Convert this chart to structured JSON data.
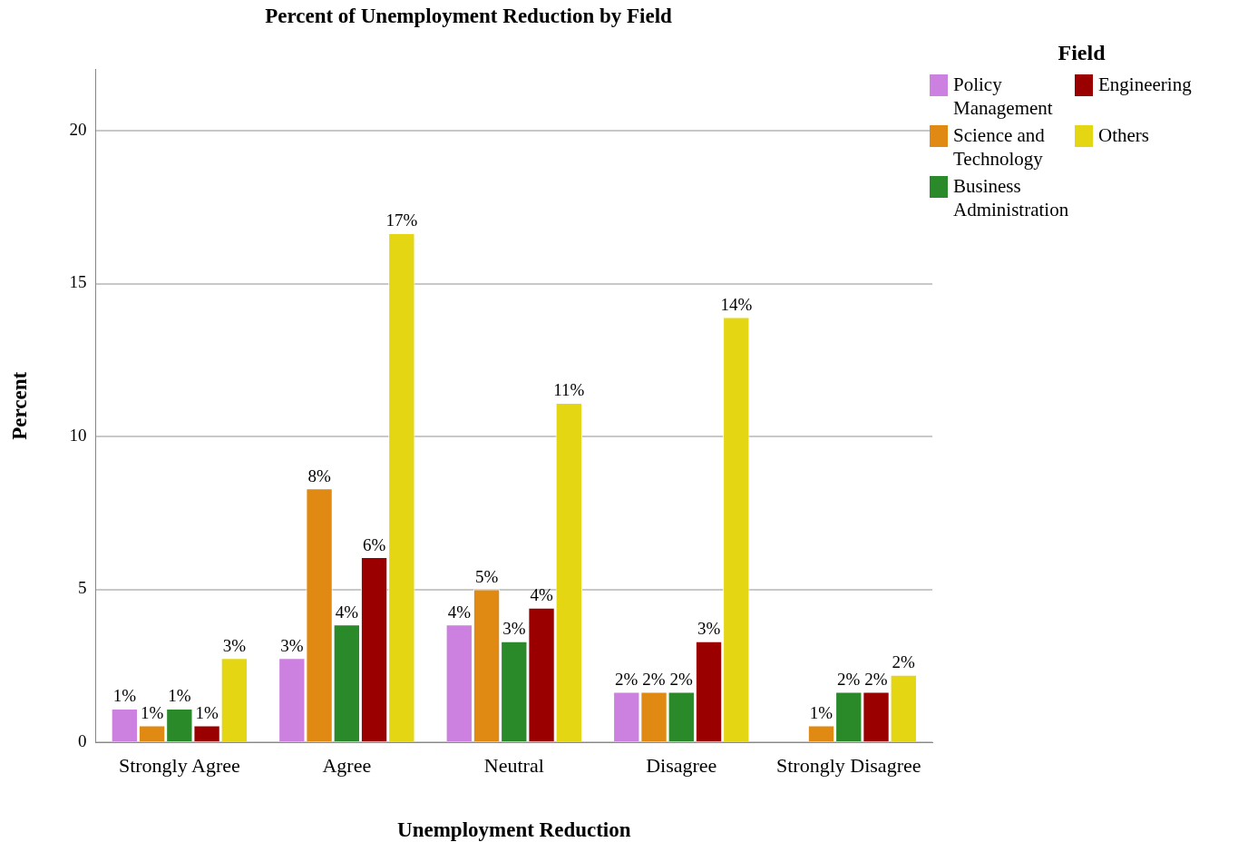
{
  "chart_data": {
    "type": "bar",
    "title": "Percent of Unemployment Reduction by Field",
    "xlabel": "Unemployment Reduction",
    "ylabel": "Percent",
    "legend_title": "Field",
    "legend": "top right",
    "grid": "y",
    "categories": [
      "Strongly Agree",
      "Agree",
      "Neutral",
      "Disagree",
      "Strongly Disagree"
    ],
    "ylim": [
      0,
      22
    ],
    "yticks": [
      0,
      5,
      10,
      15,
      20
    ],
    "series": [
      {
        "name": "Policy Management",
        "color": "#cc80e0",
        "values": [
          1.1,
          2.75,
          3.85,
          1.65,
          null
        ],
        "value_labels": [
          "1%",
          "3%",
          "4%",
          "2%",
          null
        ]
      },
      {
        "name": "Science and Technology",
        "color": "#e08a14",
        "values": [
          0.55,
          8.3,
          5.0,
          1.65,
          0.55
        ],
        "value_labels": [
          "1%",
          "8%",
          "5%",
          "2%",
          "1%"
        ]
      },
      {
        "name": "Business Administration",
        "color": "#2a8a2a",
        "values": [
          1.1,
          3.85,
          3.3,
          1.65,
          1.65
        ],
        "value_labels": [
          "1%",
          "4%",
          "3%",
          "2%",
          "2%"
        ]
      },
      {
        "name": "Engineering",
        "color": "#9a0000",
        "values": [
          0.55,
          6.05,
          4.4,
          3.3,
          1.65
        ],
        "value_labels": [
          "1%",
          "6%",
          "4%",
          "3%",
          "2%"
        ]
      },
      {
        "name": "Others",
        "color": "#e4d612",
        "values": [
          2.75,
          16.65,
          11.1,
          13.9,
          2.2
        ],
        "value_labels": [
          "3%",
          "17%",
          "11%",
          "14%",
          "2%"
        ]
      }
    ]
  }
}
